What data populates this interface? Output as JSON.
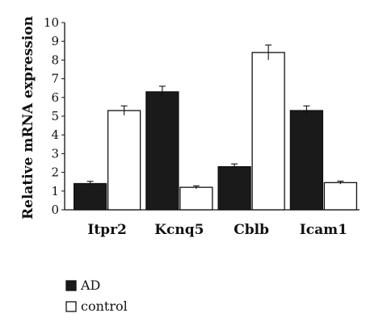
{
  "chart_data": {
    "type": "bar",
    "title": "",
    "xlabel": "",
    "ylabel": "Relative mRNA expression",
    "ylim": [
      0,
      10
    ],
    "yticks": [
      0,
      1,
      2,
      3,
      4,
      5,
      6,
      7,
      8,
      9,
      10
    ],
    "categories": [
      "Itpr2",
      "Kcnq5",
      "Cblb",
      "Icam1"
    ],
    "series": [
      {
        "name": "AD",
        "values": [
          1.4,
          6.3,
          2.3,
          5.3
        ],
        "errors": [
          0.12,
          0.3,
          0.15,
          0.25
        ],
        "fill": "#1a1a1a"
      },
      {
        "name": "control",
        "values": [
          5.3,
          1.2,
          8.4,
          1.45
        ],
        "errors": [
          0.25,
          0.08,
          0.4,
          0.08
        ],
        "fill": "#ffffff"
      }
    ],
    "legend_position": "bottom-left",
    "grid": false
  }
}
